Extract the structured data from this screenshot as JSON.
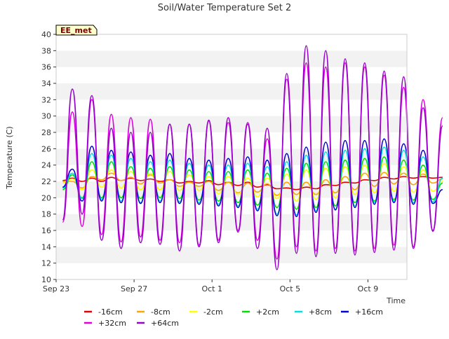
{
  "chart_data": {
    "type": "line",
    "title": "Soil/Water Temperature Set 2",
    "xlabel": "Time",
    "ylabel": "Temperature (C)",
    "badge": "EE_met",
    "ylim": [
      10,
      40
    ],
    "yticks": [
      10,
      12,
      14,
      16,
      18,
      20,
      22,
      24,
      26,
      28,
      30,
      32,
      34,
      36,
      38,
      40
    ],
    "xlim": [
      "2023-09-23",
      "2023-10-11"
    ],
    "xticks": [
      {
        "label": "Sep 23",
        "date": "2023-09-23"
      },
      {
        "label": "Sep 27",
        "date": "2023-09-27"
      },
      {
        "label": "Oct 1",
        "date": "2023-10-01"
      },
      {
        "label": "Oct 5",
        "date": "2023-10-05"
      },
      {
        "label": "Oct 9",
        "date": "2023-10-09"
      }
    ],
    "grid": "horizontal-bands",
    "legend_position": "bottom",
    "series": [
      {
        "name": "-16cm",
        "color": "#e00000",
        "x_start": "2023-09-23T08:00",
        "step_hours": 12,
        "values": [
          22.1,
          22.4,
          22.0,
          22.4,
          22.0,
          22.5,
          22.1,
          22.4,
          22.1,
          22.3,
          22.0,
          22.2,
          21.8,
          22.0,
          21.8,
          22.1,
          21.6,
          21.9,
          21.5,
          21.9,
          21.3,
          21.6,
          21.1,
          21.2,
          21.0,
          21.3,
          21.1,
          21.6,
          21.5,
          21.9,
          21.8,
          22.2,
          22.1,
          22.5,
          22.3,
          22.6,
          22.4,
          22.6,
          22.4,
          22.5
        ]
      },
      {
        "name": "-8cm",
        "color": "#ffa500",
        "x_start": "2023-09-23T08:00",
        "step_hours": 12,
        "values": [
          22.0,
          22.0,
          21.2,
          22.6,
          22.2,
          23.0,
          22.1,
          22.5,
          21.7,
          22.8,
          21.8,
          22.2,
          21.4,
          21.9,
          21.4,
          22.0,
          20.9,
          21.9,
          20.6,
          21.8,
          20.7,
          21.7,
          20.3,
          21.9,
          20.4,
          21.9,
          20.4,
          22.2,
          20.6,
          22.6,
          21.0,
          23.0,
          21.4,
          23.1,
          21.7,
          23.0,
          21.6,
          22.9,
          21.8,
          22.3
        ]
      },
      {
        "name": "-2cm",
        "color": "#ffff00",
        "x_start": "2023-09-23T08:00",
        "step_hours": 12,
        "values": [
          21.8,
          22.3,
          21.0,
          23.4,
          21.3,
          23.4,
          21.2,
          23.2,
          21.0,
          23.0,
          21.0,
          23.2,
          20.9,
          22.8,
          20.9,
          22.6,
          20.5,
          22.6,
          20.4,
          22.4,
          20.1,
          22.4,
          19.9,
          22.9,
          19.6,
          23.4,
          19.8,
          23.6,
          20.0,
          23.8,
          20.4,
          24.0,
          20.6,
          24.2,
          20.8,
          23.8,
          20.7,
          23.4,
          20.8,
          22.0
        ]
      },
      {
        "name": "+2cm",
        "color": "#00e000",
        "x_start": "2023-09-23T08:00",
        "step_hours": 12,
        "values": [
          21.0,
          22.8,
          20.0,
          24.4,
          20.0,
          24.4,
          20.0,
          23.8,
          19.9,
          23.6,
          20.0,
          23.8,
          19.9,
          23.4,
          19.7,
          23.2,
          19.6,
          23.2,
          19.4,
          23.4,
          19.1,
          23.0,
          18.8,
          23.6,
          18.6,
          24.2,
          18.8,
          24.4,
          19.0,
          24.6,
          19.4,
          24.8,
          19.6,
          25.0,
          19.8,
          24.6,
          19.7,
          24.0,
          19.8,
          21.8
        ]
      },
      {
        "name": "+8cm",
        "color": "#00e0e0",
        "x_start": "2023-09-23T08:00",
        "step_hours": 12,
        "values": [
          21.2,
          23.0,
          19.9,
          25.4,
          19.8,
          25.2,
          19.6,
          24.8,
          19.4,
          24.4,
          19.6,
          24.6,
          19.5,
          24.2,
          19.4,
          24.0,
          19.2,
          24.0,
          19.0,
          24.2,
          18.6,
          23.8,
          18.0,
          24.4,
          17.9,
          25.2,
          18.4,
          25.6,
          18.6,
          25.8,
          19.0,
          26.0,
          19.4,
          26.2,
          19.6,
          25.8,
          19.4,
          25.0,
          19.5,
          22.4
        ]
      },
      {
        "name": "+16cm",
        "color": "#0000cc",
        "x_start": "2023-09-23T08:00",
        "step_hours": 12,
        "values": [
          21.3,
          23.5,
          19.6,
          26.3,
          19.6,
          25.8,
          19.4,
          25.6,
          19.3,
          25.2,
          19.4,
          25.4,
          19.3,
          24.8,
          19.2,
          24.6,
          19.0,
          24.8,
          18.8,
          25.0,
          18.4,
          24.6,
          17.8,
          25.4,
          17.7,
          26.2,
          18.2,
          26.8,
          18.5,
          27.0,
          18.8,
          27.0,
          19.2,
          27.2,
          19.4,
          26.6,
          19.2,
          25.8,
          19.3,
          21.0
        ]
      },
      {
        "name": "+32cm",
        "color": "#dd00dd",
        "x_start": "2023-09-23T08:00",
        "step_hours": 12,
        "values": [
          17.0,
          30.5,
          16.5,
          32.0,
          15.5,
          30.2,
          14.6,
          29.8,
          15.2,
          29.6,
          14.8,
          29.0,
          14.5,
          29.0,
          14.2,
          29.4,
          14.8,
          29.2,
          16.0,
          29.2,
          14.8,
          27.2,
          12.5,
          34.5,
          14.0,
          36.5,
          13.5,
          36.0,
          13.8,
          36.5,
          13.5,
          36.0,
          13.8,
          35.0,
          14.2,
          33.5,
          14.0,
          32.0,
          16.0,
          29.8
        ]
      },
      {
        "name": "+64cm",
        "color": "#9900cc",
        "x_start": "2023-09-23T08:00",
        "step_hours": 12,
        "values": [
          17.3,
          33.3,
          18.0,
          32.5,
          14.8,
          28.5,
          13.8,
          28.0,
          14.5,
          28.0,
          14.3,
          29.0,
          13.5,
          29.0,
          14.0,
          29.5,
          14.5,
          29.8,
          15.8,
          29.0,
          13.8,
          28.5,
          11.2,
          35.2,
          13.2,
          38.6,
          12.8,
          38.0,
          13.2,
          37.0,
          13.0,
          36.5,
          13.3,
          35.5,
          13.6,
          34.8,
          13.8,
          31.0,
          15.9,
          28.8
        ]
      }
    ]
  }
}
